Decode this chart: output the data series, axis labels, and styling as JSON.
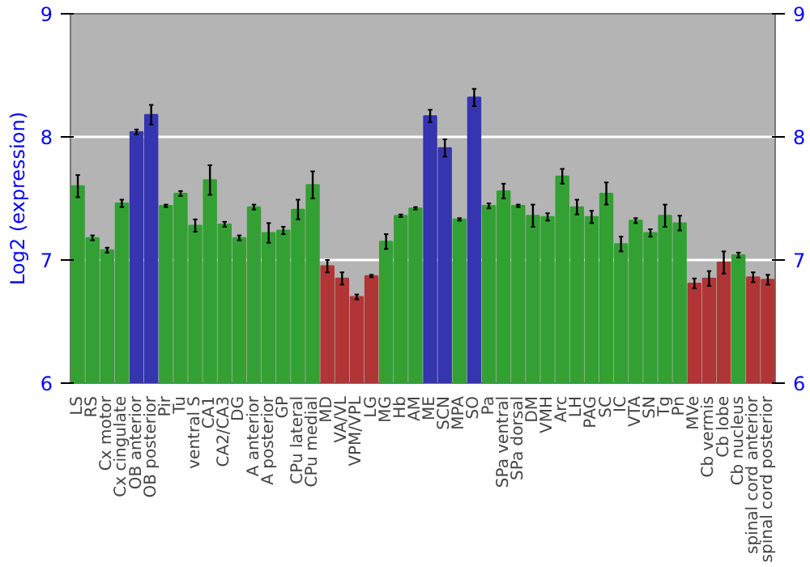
{
  "chart_data": {
    "type": "bar",
    "ylabel": "Log2 (expression)",
    "categories": [
      "LS",
      "RS",
      "Cx motor",
      "Cx cingulate",
      "OB anterior",
      "OB posterior",
      "Pir",
      "Tu",
      "ventral S",
      "CA1",
      "CA2/CA3",
      "DG",
      "A anterior",
      "A posterior",
      "GP",
      "CPu lateral",
      "CPu medial",
      "MD",
      "VA/VL",
      "VPM/VPL",
      "LG",
      "MG",
      "Hb",
      "AM",
      "ME",
      "SCN",
      "MPA",
      "SO",
      "Pa",
      "SPa ventral",
      "SPa dorsal",
      "DM",
      "VMH",
      "Arc",
      "LH",
      "PAG",
      "SC",
      "IC",
      "VTA",
      "SN",
      "Tg",
      "Pn",
      "MVe",
      "Cb vermis",
      "Cb lobe",
      "Cb nucleus",
      "spinal cord anterior",
      "spinal cord posterior"
    ],
    "values": [
      7.6,
      7.18,
      7.08,
      7.46,
      8.04,
      8.18,
      7.44,
      7.54,
      7.28,
      7.65,
      7.29,
      7.18,
      7.43,
      7.22,
      7.24,
      7.41,
      7.61,
      6.95,
      6.85,
      6.7,
      6.87,
      7.15,
      7.36,
      7.42,
      8.17,
      7.91,
      7.33,
      8.32,
      7.44,
      7.56,
      7.44,
      7.36,
      7.35,
      7.68,
      7.43,
      7.35,
      7.54,
      7.13,
      7.32,
      7.22,
      7.36,
      7.3,
      6.81,
      6.85,
      6.98,
      7.04,
      6.86,
      6.84
    ],
    "errors": [
      0.09,
      0.02,
      0.02,
      0.03,
      0.02,
      0.08,
      0.01,
      0.02,
      0.05,
      0.12,
      0.02,
      0.02,
      0.02,
      0.08,
      0.03,
      0.08,
      0.11,
      0.05,
      0.05,
      0.02,
      0.01,
      0.06,
      0.01,
      0.01,
      0.05,
      0.07,
      0.01,
      0.07,
      0.02,
      0.06,
      0.01,
      0.09,
      0.03,
      0.06,
      0.06,
      0.05,
      0.09,
      0.06,
      0.02,
      0.03,
      0.09,
      0.06,
      0.04,
      0.06,
      0.09,
      0.02,
      0.04,
      0.04
    ],
    "colors": [
      "#33a033",
      "#33a033",
      "#33a033",
      "#33a033",
      "#3535b0",
      "#3535b0",
      "#33a033",
      "#33a033",
      "#33a033",
      "#33a033",
      "#33a033",
      "#33a033",
      "#33a033",
      "#33a033",
      "#33a033",
      "#33a033",
      "#33a033",
      "#b03535",
      "#b03535",
      "#b03535",
      "#b03535",
      "#33a033",
      "#33a033",
      "#33a033",
      "#3535b0",
      "#3535b0",
      "#33a033",
      "#3535b0",
      "#33a033",
      "#33a033",
      "#33a033",
      "#33a033",
      "#33a033",
      "#33a033",
      "#33a033",
      "#33a033",
      "#33a033",
      "#33a033",
      "#33a033",
      "#33a033",
      "#33a033",
      "#33a033",
      "#b03535",
      "#b03535",
      "#b03535",
      "#33a033",
      "#b03535",
      "#b03535"
    ],
    "ylim": [
      6,
      9
    ],
    "yticks": [
      6,
      7,
      8,
      9
    ],
    "y2lim": [
      6,
      9
    ],
    "y2ticks": [
      6,
      7,
      8,
      9
    ],
    "grid": "y"
  }
}
